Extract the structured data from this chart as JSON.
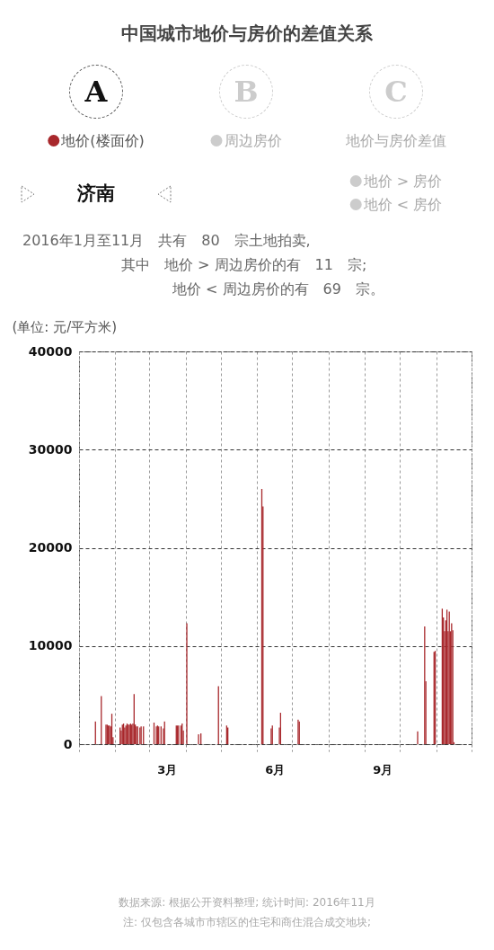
{
  "chart_data": {
    "type": "bar",
    "title": "中国城市地价与房价的差值关系",
    "subtitle": "济南",
    "ylabel": "(单位: 元/平方米)",
    "annotations": [
      "A",
      "B",
      "C",
      "周边房价",
      "地价与房价差值",
      "地价 > 房价",
      "地价 < 房价",
      "2016年1月至11月　共有　80　宗土地拍卖,",
      "其中　地价 > 周边房价的有　11　宗;",
      "地价 < 周边房价的有　69　宗。",
      "数据来源: 根据公开资料整理; 统计时间: 2016年11月",
      "注: 仅包含各城市市辖区的住宅和商住混合成交地块;"
    ],
    "x": [
      "2016-01-15",
      "2016-01-20",
      "2016-01-24",
      "2016-01-25",
      "2016-01-26",
      "2016-01-27",
      "2016-01-28",
      "2016-01-29",
      "2016-01-30",
      "2016-02-05",
      "2016-02-06",
      "2016-02-07",
      "2016-02-08",
      "2016-02-09",
      "2016-02-10",
      "2016-02-11",
      "2016-02-12",
      "2016-02-13",
      "2016-02-14",
      "2016-02-15",
      "2016-02-16",
      "2016-02-17",
      "2016-02-18",
      "2016-02-19",
      "2016-02-20",
      "2016-02-22",
      "2016-02-23",
      "2016-02-25",
      "2016-03-05",
      "2016-03-07",
      "2016-03-08",
      "2016-03-09",
      "2016-03-11",
      "2016-03-13",
      "2016-03-14",
      "2016-03-24",
      "2016-03-25",
      "2016-03-26",
      "2016-03-28",
      "2016-03-29",
      "2016-03-30",
      "2016-04-02",
      "2016-04-12",
      "2016-04-14",
      "2016-04-29",
      "2016-05-06",
      "2016-05-07",
      "2016-06-05",
      "2016-06-06",
      "2016-06-13",
      "2016-06-14",
      "2016-06-20",
      "2016-06-21",
      "2016-07-06",
      "2016-07-07",
      "2016-10-16",
      "2016-10-22",
      "2016-10-23",
      "2016-10-30",
      "2016-10-31",
      "2016-11-06",
      "2016-11-07",
      "2016-11-08",
      "2016-11-09",
      "2016-11-10",
      "2016-11-11",
      "2016-11-12",
      "2016-11-13",
      "2016-11-14",
      "2016-11-15",
      "2016-11-16"
    ],
    "series": [
      {
        "name": "地价(楼面价)",
        "color": "#a8282c",
        "values": [
          2300,
          4900,
          2000,
          2000,
          1900,
          1900,
          1800,
          3100,
          700,
          1700,
          1400,
          2000,
          2100,
          1700,
          1900,
          2100,
          2000,
          2000,
          2100,
          2000,
          2100,
          5100,
          2000,
          1800,
          1800,
          1700,
          1800,
          1800,
          2200,
          1800,
          1900,
          1800,
          1800,
          1600,
          2300,
          1900,
          1900,
          1900,
          1900,
          2100,
          1400,
          12300,
          1000,
          1100,
          5900,
          1900,
          1700,
          26000,
          24200,
          1600,
          1900,
          1700,
          3200,
          2500,
          2300,
          1300,
          12000,
          6400,
          9400,
          9500,
          13800,
          12900,
          11500,
          12600,
          13700,
          11500,
          13500,
          11500,
          12300,
          11600,
          200
        ]
      }
    ],
    "xlim": [
      "2016-01-01",
      "2016-12-01"
    ],
    "xticks": [
      {
        "value": "2016-01-01",
        "label": null
      },
      {
        "value": "2016-02-01",
        "label": null
      },
      {
        "value": "2016-03-01",
        "label": null
      },
      {
        "value": "2016-03-16",
        "label": "3月"
      },
      {
        "value": "2016-04-01",
        "label": null
      },
      {
        "value": "2016-05-01",
        "label": null
      },
      {
        "value": "2016-06-01",
        "label": null
      },
      {
        "value": "2016-06-16",
        "label": "6月"
      },
      {
        "value": "2016-07-01",
        "label": null
      },
      {
        "value": "2016-08-01",
        "label": null
      },
      {
        "value": "2016-09-01",
        "label": null
      },
      {
        "value": "2016-09-16",
        "label": "9月"
      },
      {
        "value": "2016-10-01",
        "label": null
      },
      {
        "value": "2016-11-01",
        "label": null
      },
      {
        "value": "2016-12-01",
        "label": null
      }
    ],
    "ylim": [
      0,
      40000
    ],
    "yticks": [
      0,
      10000,
      20000,
      30000,
      40000
    ],
    "grid": true,
    "legend": "top"
  }
}
